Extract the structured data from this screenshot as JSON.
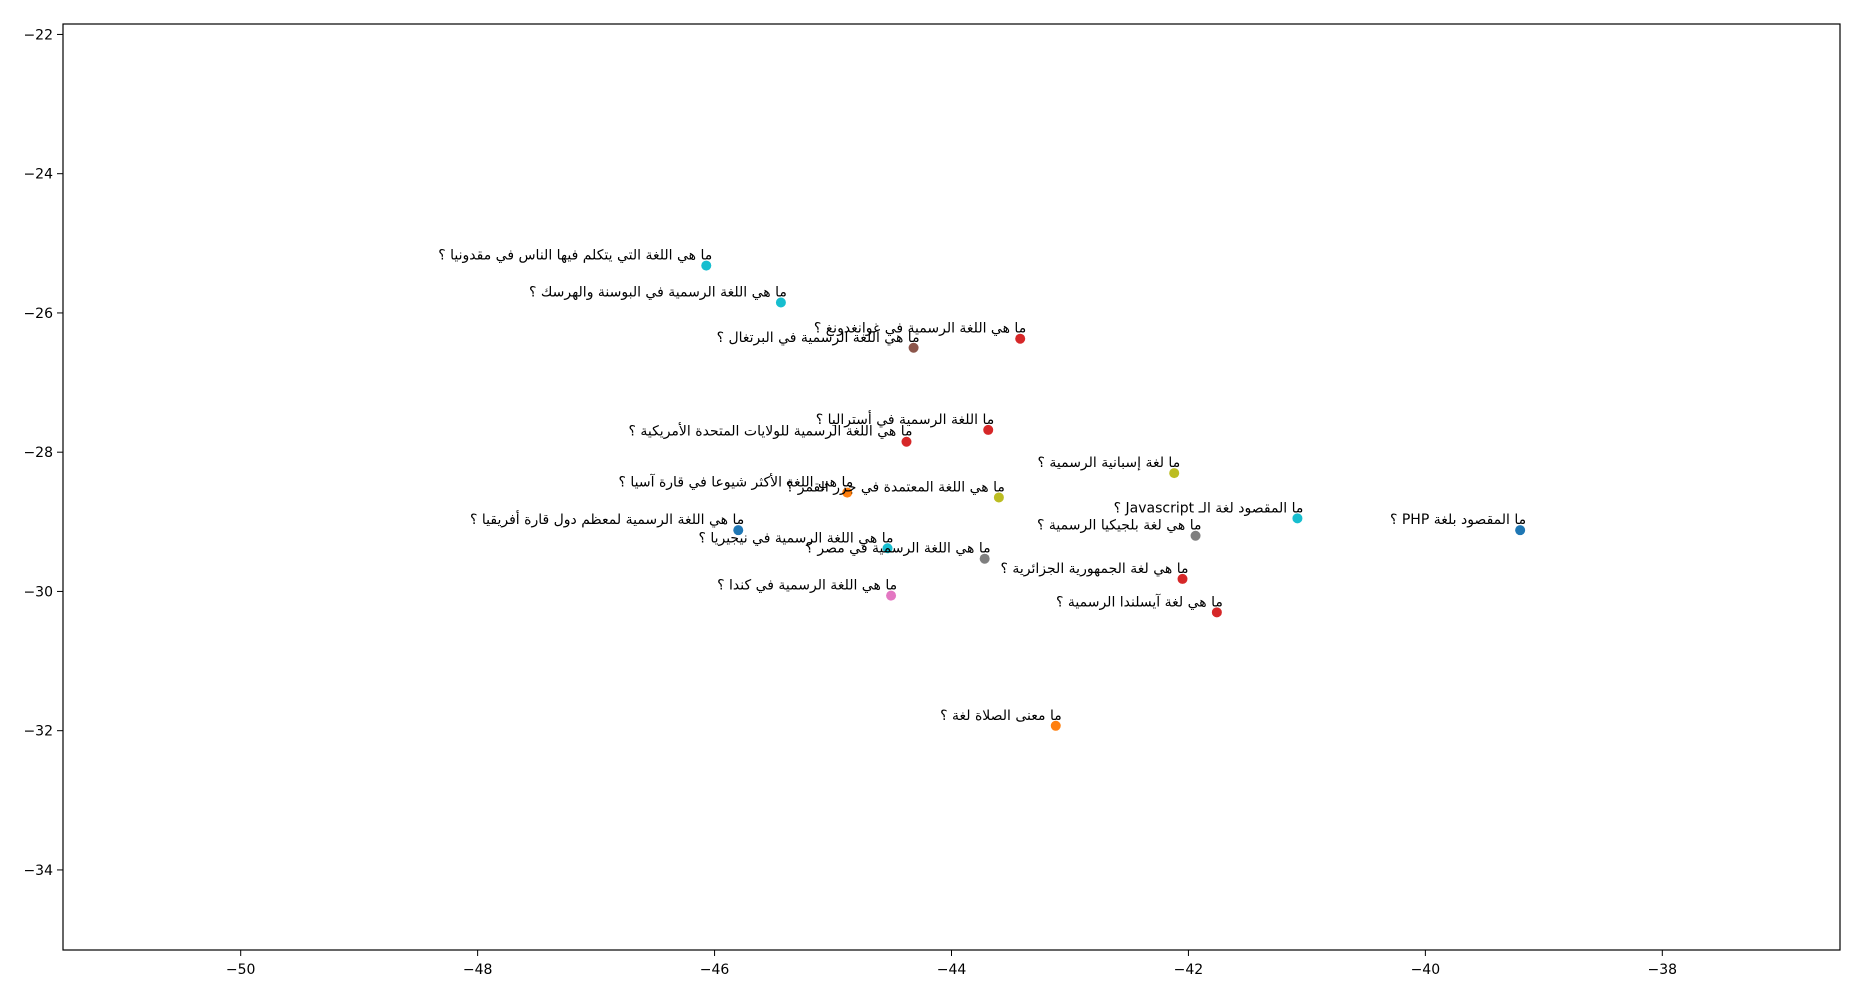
{
  "chart_data": {
    "type": "scatter",
    "title": "",
    "xlabel": "",
    "ylabel": "",
    "xlim": [
      -51.5,
      -36.5
    ],
    "ylim": [
      -35.15,
      -21.85
    ],
    "x_ticks": [
      -50,
      -48,
      -46,
      -44,
      -42,
      -40,
      -38
    ],
    "y_ticks": [
      -22,
      -24,
      -26,
      -28,
      -30,
      -32,
      -34
    ],
    "x_tick_labels": [
      "−50",
      "−48",
      "−46",
      "−44",
      "−42",
      "−40",
      "−38"
    ],
    "y_tick_labels": [
      "−22",
      "−24",
      "−26",
      "−28",
      "−30",
      "−32",
      "−34"
    ],
    "grid": false,
    "points": [
      {
        "label": "ما هي اللغة التي يتكلم فيها الناس في مقدونيا ؟",
        "x": -46.07,
        "y": -25.32,
        "color": "#17becf"
      },
      {
        "label": "ما هي اللغة الرسمية في البوسنة والهرسك ؟",
        "x": -45.44,
        "y": -25.85,
        "color": "#17becf"
      },
      {
        "label": "ما هي اللغة الرسمية في غوانغدونغ ؟",
        "x": -43.42,
        "y": -26.37,
        "color": "#d62728"
      },
      {
        "label": "ما هي اللغة الرسمية في البرتغال ؟",
        "x": -44.32,
        "y": -26.5,
        "color": "#8c564b"
      },
      {
        "label": "ما اللغة الرسمية في أستراليا ؟",
        "x": -43.69,
        "y": -27.68,
        "color": "#d62728"
      },
      {
        "label": "ما هي اللغة الرسمية للولايات المتحدة الأمريكية ؟",
        "x": -44.38,
        "y": -27.85,
        "color": "#d62728"
      },
      {
        "label": "ما لغة إسبانية الرسمية ؟",
        "x": -42.12,
        "y": -28.3,
        "color": "#bcbd22"
      },
      {
        "label": "ما هي اللغة الأكثر شيوعا في قارة آسيا ؟",
        "x": -44.88,
        "y": -28.58,
        "color": "#ff7f0e"
      },
      {
        "label": "ما هي اللغة المعتمدة في جزر القمر ؟",
        "x": -43.6,
        "y": -28.65,
        "color": "#bcbd22"
      },
      {
        "label": "ما المقصود لغة الـ Javascript ؟",
        "x": -41.08,
        "y": -28.95,
        "color": "#17becf"
      },
      {
        "label": "ما المقصود بلغة PHP ؟",
        "x": -39.2,
        "y": -29.12,
        "color": "#1f77b4"
      },
      {
        "label": "ما هي اللغة الرسمية لمعظم دول قارة أفريقيا ؟",
        "x": -45.8,
        "y": -29.12,
        "color": "#1f77b4"
      },
      {
        "label": "ما هي لغة بلجيكيا الرسمية ؟",
        "x": -41.94,
        "y": -29.2,
        "color": "#7f7f7f"
      },
      {
        "label": "ما هي اللغة الرسمية في نيجيريا ؟",
        "x": -44.54,
        "y": -29.38,
        "color": "#17becf"
      },
      {
        "label": "ما هي اللغة الرسمية في مصر ؟",
        "x": -43.72,
        "y": -29.53,
        "color": "#7f7f7f"
      },
      {
        "label": "ما هي لغة الجمهورية الجزائرية ؟",
        "x": -42.05,
        "y": -29.82,
        "color": "#d62728"
      },
      {
        "label": "ما هي اللغة الرسمية في كندا ؟",
        "x": -44.51,
        "y": -30.06,
        "color": "#e377c2"
      },
      {
        "label": "ما هي لغة آيسلندا الرسمية ؟",
        "x": -41.76,
        "y": -30.3,
        "color": "#d62728"
      },
      {
        "label": "ما معنى الصلاة لغة ؟",
        "x": -43.12,
        "y": -31.93,
        "color": "#ff7f0e"
      }
    ]
  }
}
